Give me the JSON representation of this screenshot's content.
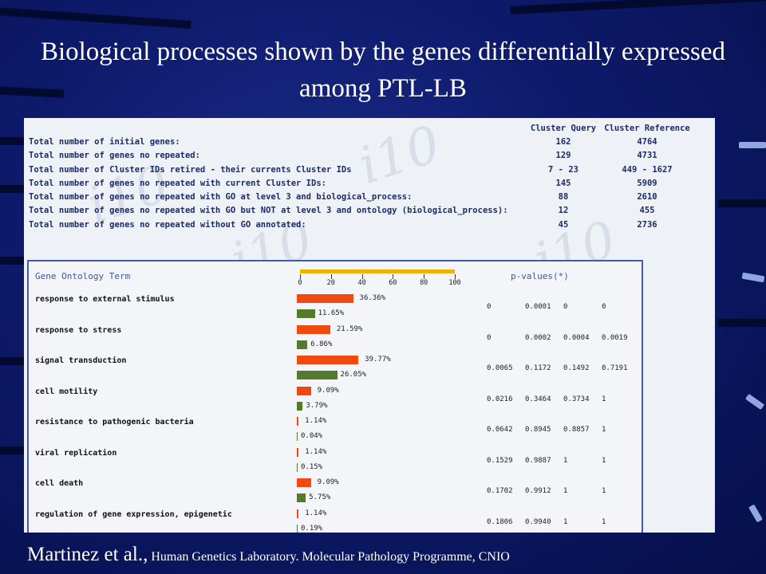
{
  "title": "Biological processes shown by the genes differentially expressed among PTL-LB",
  "summary": {
    "headers": {
      "query": "Cluster Query",
      "reference": "Cluster Reference"
    },
    "rows": [
      {
        "label": "Total number of initial genes:",
        "query": "162",
        "reference": "4764"
      },
      {
        "label": "Total number of genes no repeated:",
        "query": "129",
        "reference": "4731"
      },
      {
        "label": "Total number of Cluster IDs retired - their currents Cluster IDs",
        "query": "7 - 23",
        "reference": "449 - 1627"
      },
      {
        "label": "Total number of genes no repeated with current Cluster IDs:",
        "query": "145",
        "reference": "5909"
      },
      {
        "label": "Total number of genes no repeated with GO at level 3 and biological_process:",
        "query": "88",
        "reference": "2610"
      },
      {
        "label": "Total number of genes no repeated with GO but NOT at level 3 and ontology (biological_process):",
        "query": "12",
        "reference": "455"
      },
      {
        "label": "Total number of genes no repeated without GO annotated:",
        "query": "45",
        "reference": "2736"
      }
    ]
  },
  "go_table": {
    "term_header": "Gene Ontology Term",
    "pvalues_header": "p-values(*)",
    "scale_ticks": [
      "0",
      "20",
      "40",
      "60",
      "80",
      "100"
    ],
    "colors": {
      "query": "#f04a10",
      "reference": "#557a2e",
      "scale": "#f0b400"
    },
    "rows": [
      {
        "term": "response to external stimulus",
        "query_pct": 36.36,
        "query_label": "36.36%",
        "ref_pct": 11.65,
        "ref_label": "11.65%",
        "pvalues": [
          "0",
          "0.0001",
          "0",
          "0"
        ]
      },
      {
        "term": "response to stress",
        "query_pct": 21.59,
        "query_label": "21.59%",
        "ref_pct": 6.86,
        "ref_label": "6.86%",
        "pvalues": [
          "0",
          "0.0002",
          "0.0004",
          "0.0019"
        ]
      },
      {
        "term": "signal transduction",
        "query_pct": 39.77,
        "query_label": "39.77%",
        "ref_pct": 26.05,
        "ref_label": "26.05%",
        "pvalues": [
          "0.0065",
          "0.1172",
          "0.1492",
          "0.7191"
        ]
      },
      {
        "term": "cell motility",
        "query_pct": 9.09,
        "query_label": "9.09%",
        "ref_pct": 3.79,
        "ref_label": "3.79%",
        "pvalues": [
          "0.0216",
          "0.3464",
          "0.3734",
          "1"
        ]
      },
      {
        "term": "resistance to pathogenic bacteria",
        "query_pct": 1.14,
        "query_label": "1.14%",
        "ref_pct": 0.04,
        "ref_label": "0.04%",
        "pvalues": [
          "0.0642",
          "0.8945",
          "0.8857",
          "1"
        ]
      },
      {
        "term": "viral replication",
        "query_pct": 1.14,
        "query_label": "1.14%",
        "ref_pct": 0.15,
        "ref_label": "0.15%",
        "pvalues": [
          "0.1529",
          "0.9887",
          "1",
          "1"
        ]
      },
      {
        "term": "cell death",
        "query_pct": 9.09,
        "query_label": "9.09%",
        "ref_pct": 5.75,
        "ref_label": "5.75%",
        "pvalues": [
          "0.1702",
          "0.9912",
          "1",
          "1"
        ]
      },
      {
        "term": "regulation of gene expression, epigenetic",
        "query_pct": 1.14,
        "query_label": "1.14%",
        "ref_pct": 0.19,
        "ref_label": "0.19%",
        "pvalues": [
          "0.1806",
          "0.9940",
          "1",
          "1"
        ]
      }
    ]
  },
  "footer": {
    "authors": "Martinez et al.,",
    "affiliation": "Human Genetics Laboratory. Molecular Pathology Programme, CNIO"
  }
}
